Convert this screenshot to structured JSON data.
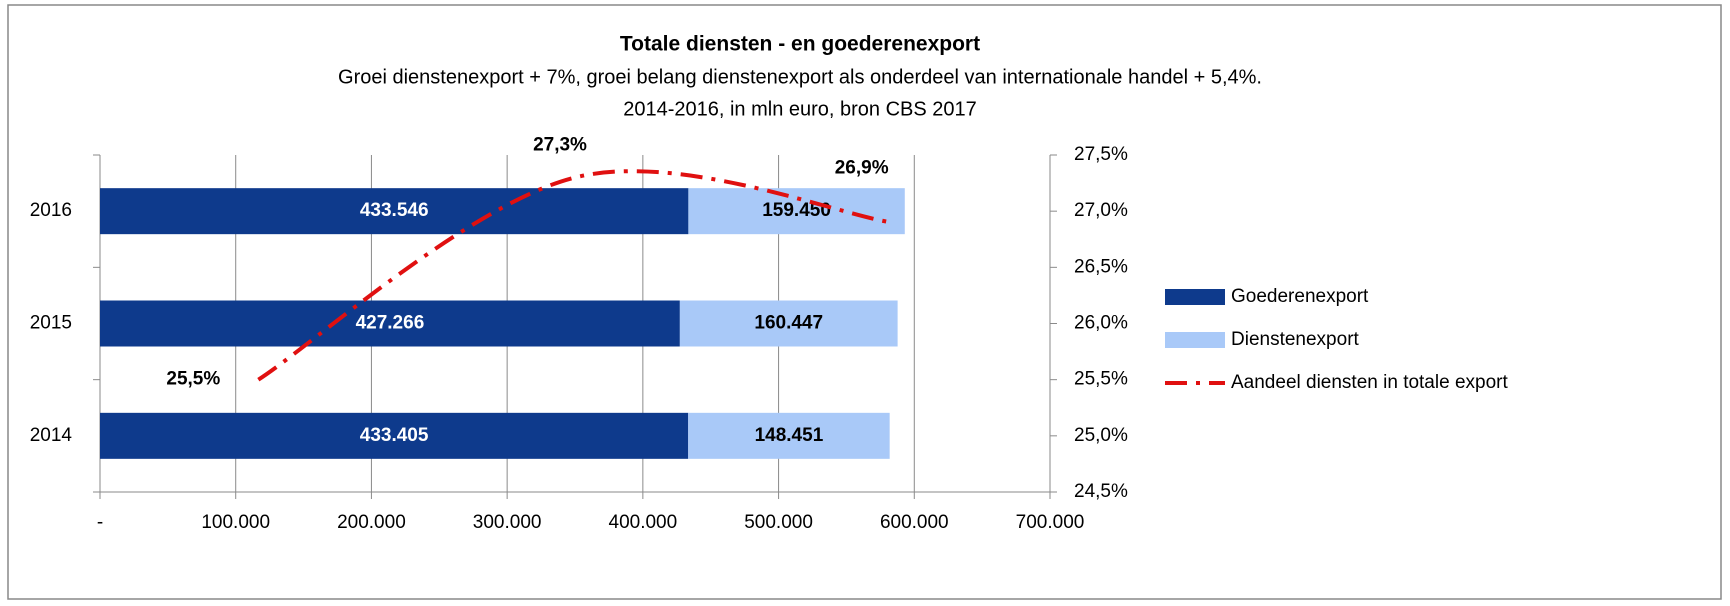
{
  "chart_data": {
    "type": "bar",
    "orientation": "horizontal",
    "stacked": true,
    "title": "Totale diensten - en goederenexport",
    "subtitle": [
      "Groei dienstenexport + 7%, groei belang dienstenexport als onderdeel van internationale handel + 5,4%.",
      "2014-2016, in mln euro, bron CBS 2017"
    ],
    "categories": [
      "2014",
      "2015",
      "2016"
    ],
    "series": [
      {
        "name": "Goederenexport",
        "color": "#0e3a8c",
        "values": [
          433405,
          427266,
          433546
        ],
        "value_labels": [
          "433.405",
          "427.266",
          "433.546"
        ],
        "label_color": "#ffffff"
      },
      {
        "name": "Dienstenexport",
        "color": "#a9c9f8",
        "values": [
          148451,
          160447,
          159450
        ],
        "value_labels": [
          "148.451",
          "160.447",
          "159.450"
        ],
        "label_color": "#000000"
      },
      {
        "name": "Aandeel diensten in totale export",
        "type": "line",
        "axis": "y2",
        "color": "#e01010",
        "values": [
          25.5,
          27.3,
          26.9
        ],
        "value_labels": [
          "25,5%",
          "27,3%",
          "26,9%"
        ]
      }
    ],
    "xlim": [
      0,
      700000
    ],
    "xticks": [
      {
        "value": 0,
        "label": "-"
      },
      {
        "value": 100000,
        "label": "100.000"
      },
      {
        "value": 200000,
        "label": "200.000"
      },
      {
        "value": 300000,
        "label": "300.000"
      },
      {
        "value": 400000,
        "label": "400.000"
      },
      {
        "value": 500000,
        "label": "500.000"
      },
      {
        "value": 600000,
        "label": "600.000"
      },
      {
        "value": 700000,
        "label": "700.000"
      }
    ],
    "y2lim": [
      24.5,
      27.5
    ],
    "y2ticks": [
      {
        "value": 24.5,
        "label": "24,5%"
      },
      {
        "value": 25,
        "label": "25,0%"
      },
      {
        "value": 25.5,
        "label": "25,5%"
      },
      {
        "value": 26,
        "label": "26,0%"
      },
      {
        "value": 26.5,
        "label": "26,5%"
      },
      {
        "value": 27,
        "label": "27,0%"
      },
      {
        "value": 27.5,
        "label": "27,5%"
      }
    ],
    "grid": true,
    "legend": "right"
  }
}
